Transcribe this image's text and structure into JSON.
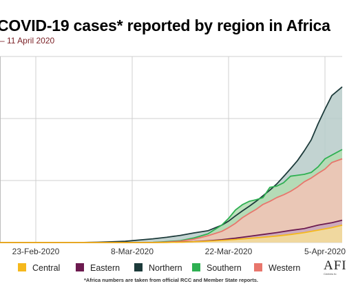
{
  "header": {
    "title": "COVID-19 cases* reported by region in Africa",
    "subtitle": "– 11 April 2020"
  },
  "footnote": "*Africa numbers are taken from official RCC and Member State reports.",
  "logo": {
    "text": "AFI",
    "sub": "Centres fo"
  },
  "chart_data": {
    "type": "area",
    "x_tick_labels": [
      "23-Feb-2020",
      "8-Mar-2020",
      "22-Mar-2020",
      "5-Apr-2020"
    ],
    "x_ticks": [
      9,
      23,
      37,
      51
    ],
    "xlim": [
      0,
      53.5
    ],
    "ylim": [
      0,
      6000
    ],
    "grid": true,
    "legend_position": "bottom",
    "series": [
      {
        "name": "Northern",
        "color": "#1c3a3a",
        "fill": "#b7cbc9",
        "points": [
          [
            0,
            0
          ],
          [
            12,
            0
          ],
          [
            16,
            2
          ],
          [
            18,
            10
          ],
          [
            20,
            25
          ],
          [
            22,
            40
          ],
          [
            24,
            80
          ],
          [
            26,
            120
          ],
          [
            28,
            170
          ],
          [
            30,
            230
          ],
          [
            32,
            310
          ],
          [
            34,
            380
          ],
          [
            35,
            470
          ],
          [
            36,
            560
          ],
          [
            37,
            690
          ],
          [
            38,
            860
          ],
          [
            39,
            1020
          ],
          [
            40,
            1170
          ],
          [
            41,
            1330
          ],
          [
            42,
            1510
          ],
          [
            43,
            1690
          ],
          [
            44,
            1890
          ],
          [
            45,
            2130
          ],
          [
            46,
            2380
          ],
          [
            47,
            2640
          ],
          [
            48,
            2960
          ],
          [
            49,
            3310
          ],
          [
            50,
            3830
          ],
          [
            51,
            4300
          ],
          [
            52,
            4740
          ],
          [
            53.5,
            5020
          ]
        ]
      },
      {
        "name": "Southern",
        "color": "#2eb052",
        "fill": "#b3dcb2",
        "points": [
          [
            0,
            0
          ],
          [
            24,
            0
          ],
          [
            26,
            5
          ],
          [
            28,
            30
          ],
          [
            30,
            60
          ],
          [
            32,
            150
          ],
          [
            34,
            280
          ],
          [
            36,
            560
          ],
          [
            37,
            780
          ],
          [
            38,
            1050
          ],
          [
            39,
            1220
          ],
          [
            40,
            1330
          ],
          [
            41,
            1380
          ],
          [
            42,
            1450
          ],
          [
            43,
            1780
          ],
          [
            44,
            1820
          ],
          [
            45,
            1930
          ],
          [
            46,
            2140
          ],
          [
            47,
            2170
          ],
          [
            48,
            2200
          ],
          [
            49,
            2260
          ],
          [
            50,
            2440
          ],
          [
            51,
            2700
          ],
          [
            52,
            2820
          ],
          [
            53.5,
            3000
          ]
        ]
      },
      {
        "name": "Western",
        "color": "#e8766c",
        "fill": "#f3c3b6",
        "points": [
          [
            0,
            0
          ],
          [
            24,
            0
          ],
          [
            26,
            3
          ],
          [
            28,
            15
          ],
          [
            30,
            45
          ],
          [
            32,
            110
          ],
          [
            34,
            220
          ],
          [
            36,
            360
          ],
          [
            37,
            480
          ],
          [
            38,
            620
          ],
          [
            39,
            800
          ],
          [
            40,
            940
          ],
          [
            41,
            1070
          ],
          [
            42,
            1230
          ],
          [
            43,
            1330
          ],
          [
            44,
            1450
          ],
          [
            45,
            1540
          ],
          [
            46,
            1650
          ],
          [
            47,
            1790
          ],
          [
            48,
            1960
          ],
          [
            49,
            2080
          ],
          [
            50,
            2230
          ],
          [
            51,
            2370
          ],
          [
            52,
            2580
          ],
          [
            53.5,
            2700
          ]
        ]
      },
      {
        "name": "Eastern",
        "color": "#6c1a4f",
        "fill": "#c9a6bd",
        "points": [
          [
            0,
            0
          ],
          [
            26,
            0
          ],
          [
            28,
            5
          ],
          [
            30,
            15
          ],
          [
            32,
            30
          ],
          [
            34,
            55
          ],
          [
            36,
            90
          ],
          [
            38,
            140
          ],
          [
            40,
            200
          ],
          [
            42,
            260
          ],
          [
            44,
            320
          ],
          [
            46,
            390
          ],
          [
            48,
            450
          ],
          [
            50,
            560
          ],
          [
            52,
            640
          ],
          [
            53.5,
            720
          ]
        ]
      },
      {
        "name": "Central",
        "color": "#f5b81c",
        "fill": "#f6df9a",
        "points": [
          [
            0,
            0
          ],
          [
            26,
            0
          ],
          [
            28,
            3
          ],
          [
            30,
            10
          ],
          [
            32,
            25
          ],
          [
            34,
            45
          ],
          [
            36,
            70
          ],
          [
            38,
            100
          ],
          [
            40,
            135
          ],
          [
            42,
            170
          ],
          [
            44,
            210
          ],
          [
            46,
            260
          ],
          [
            48,
            320
          ],
          [
            50,
            400
          ],
          [
            52,
            480
          ],
          [
            53.5,
            560
          ]
        ]
      }
    ],
    "legend_order": [
      "Central",
      "Eastern",
      "Northern",
      "Southern",
      "Western"
    ]
  }
}
